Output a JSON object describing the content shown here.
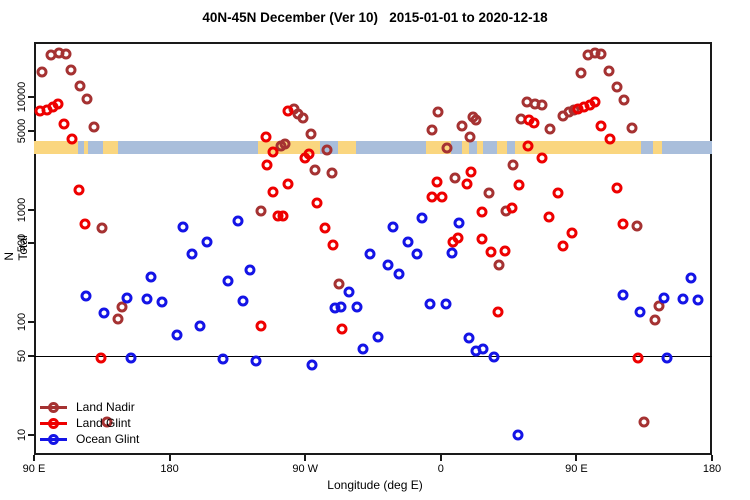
{
  "title": "40N-45N December (Ver 10)   2015-01-01 to 2020-12-18",
  "chart_data": {
    "type": "scatter",
    "xlabel": "Longitude (deg E)",
    "ylabel": "N Total",
    "y_scale": "log10",
    "x_domain": [
      90,
      540
    ],
    "y_domain": [
      6.6,
      30800
    ],
    "grid": false,
    "reference_line_y": 50,
    "x_ticks": [
      {
        "label": "90 E",
        "value": 90
      },
      {
        "label": "180",
        "value": 180
      },
      {
        "label": "90 W",
        "value": 270
      },
      {
        "label": "0",
        "value": 360
      },
      {
        "label": "90 E",
        "value": 450
      },
      {
        "label": "180",
        "value": 540
      }
    ],
    "y_ticks": [
      {
        "label": "10000",
        "value": 10000
      },
      {
        "label": "5000",
        "value": 5000
      },
      {
        "label": "1000",
        "value": 1000
      },
      {
        "label": "500",
        "value": 500
      },
      {
        "label": "100",
        "value": 100
      },
      {
        "label": "50",
        "value": 50
      },
      {
        "label": "10",
        "value": 10
      }
    ],
    "map_strip": {
      "comment": "coastline band across plot; values are N-Total range it spans",
      "value_range": [
        3120,
        4070
      ],
      "ocean_color": "#A9BEDB",
      "land_color": "#FAD67F",
      "land_segments_deg": [
        [
          90,
          119
        ],
        [
          123,
          126
        ],
        [
          136,
          146
        ],
        [
          239,
          280
        ],
        [
          292,
          304
        ],
        [
          350,
          367
        ],
        [
          374,
          379
        ],
        [
          384,
          388
        ],
        [
          397,
          404
        ],
        [
          409,
          493
        ],
        [
          501,
          507
        ]
      ]
    },
    "legend_position": "bottom-left",
    "series": [
      {
        "name": "Land Nadir",
        "color": "#A53232",
        "marker": "open-circle",
        "points": [
          [
            95.3,
            16700
          ],
          [
            101.3,
            23600
          ],
          [
            106.6,
            24600
          ],
          [
            111.2,
            24000
          ],
          [
            114.6,
            17400
          ],
          [
            120.5,
            12500
          ],
          [
            125.2,
            9600
          ],
          [
            129.8,
            5400
          ],
          [
            135.1,
            690
          ],
          [
            138.4,
            13
          ],
          [
            145.8,
            107
          ],
          [
            148.4,
            137
          ],
          [
            240.7,
            970
          ],
          [
            253.9,
            3700
          ],
          [
            256.6,
            3800
          ],
          [
            262.6,
            7800
          ],
          [
            265.2,
            7100
          ],
          [
            268.5,
            6500
          ],
          [
            273.8,
            4700
          ],
          [
            276.5,
            2250
          ],
          [
            284.5,
            3400
          ],
          [
            287.8,
            2100
          ],
          [
            292.4,
            220
          ],
          [
            354.1,
            5100
          ],
          [
            358.1,
            7400
          ],
          [
            364.1,
            3500
          ],
          [
            369.4,
            1900
          ],
          [
            374.1,
            5500
          ],
          [
            379.4,
            4400
          ],
          [
            381.4,
            6600
          ],
          [
            383.4,
            6300
          ],
          [
            392.0,
            1400
          ],
          [
            398.6,
            320
          ],
          [
            403.3,
            970
          ],
          [
            407.9,
            2500
          ],
          [
            413.2,
            6400
          ],
          [
            417.2,
            9000
          ],
          [
            422.5,
            8700
          ],
          [
            427.2,
            8500
          ],
          [
            432.5,
            5200
          ],
          [
            441.1,
            6800
          ],
          [
            445.1,
            7400
          ],
          [
            448.4,
            7700
          ],
          [
            453.1,
            16300
          ],
          [
            457.7,
            23600
          ],
          [
            462.4,
            24600
          ],
          [
            466.4,
            24000
          ],
          [
            471.7,
            17000
          ],
          [
            477.0,
            12300
          ],
          [
            481.6,
            9400
          ],
          [
            486.9,
            5300
          ],
          [
            490.2,
            720
          ],
          [
            494.9,
            13
          ],
          [
            502.2,
            105
          ],
          [
            504.8,
            140
          ]
        ]
      },
      {
        "name": "Land Glint",
        "color": "#EE0000",
        "marker": "open-circle",
        "points": [
          [
            94.0,
            7500
          ],
          [
            98.6,
            7700
          ],
          [
            102.6,
            8200
          ],
          [
            105.9,
            8700
          ],
          [
            109.9,
            5700
          ],
          [
            115.2,
            4200
          ],
          [
            119.9,
            1500
          ],
          [
            123.9,
            750
          ],
          [
            134.5,
            48
          ],
          [
            240.7,
            93
          ],
          [
            244.0,
            4400
          ],
          [
            244.6,
            2500
          ],
          [
            248.6,
            3250
          ],
          [
            248.6,
            1440
          ],
          [
            251.9,
            880
          ],
          [
            255.3,
            880
          ],
          [
            258.6,
            7500
          ],
          [
            258.6,
            1700
          ],
          [
            269.9,
            2900
          ],
          [
            272.5,
            3100
          ],
          [
            277.8,
            1150
          ],
          [
            283.1,
            690
          ],
          [
            288.4,
            480
          ],
          [
            294.4,
            87
          ],
          [
            354.1,
            1300
          ],
          [
            357.5,
            1760
          ],
          [
            360.8,
            1300
          ],
          [
            368.1,
            520
          ],
          [
            371.4,
            560
          ],
          [
            377.4,
            1700
          ],
          [
            380.0,
            2160
          ],
          [
            387.3,
            950
          ],
          [
            387.3,
            550
          ],
          [
            393.3,
            420
          ],
          [
            398.0,
            124
          ],
          [
            402.6,
            430
          ],
          [
            407.3,
            1030
          ],
          [
            411.9,
            1650
          ],
          [
            417.9,
            3700
          ],
          [
            418.5,
            6300
          ],
          [
            421.9,
            5900
          ],
          [
            427.2,
            2900
          ],
          [
            431.8,
            860
          ],
          [
            437.8,
            1400
          ],
          [
            441.1,
            470
          ],
          [
            447.1,
            620
          ],
          [
            451.1,
            7800
          ],
          [
            455.1,
            8200
          ],
          [
            459.1,
            8500
          ],
          [
            462.4,
            9000
          ],
          [
            466.4,
            5500
          ],
          [
            472.4,
            4200
          ],
          [
            477.0,
            1560
          ],
          [
            481.0,
            750
          ],
          [
            490.9,
            48
          ]
        ]
      },
      {
        "name": "Ocean Glint",
        "color": "#1414E6",
        "marker": "open-circle",
        "points": [
          [
            124.5,
            170
          ],
          [
            136.5,
            120
          ],
          [
            151.7,
            165
          ],
          [
            154.4,
            48
          ],
          [
            165.0,
            160
          ],
          [
            167.7,
            250
          ],
          [
            175.0,
            150
          ],
          [
            184.9,
            77
          ],
          [
            188.9,
            700
          ],
          [
            194.9,
            400
          ],
          [
            200.2,
            93
          ],
          [
            204.8,
            510
          ],
          [
            215.4,
            47
          ],
          [
            218.8,
            233
          ],
          [
            225.4,
            790
          ],
          [
            228.7,
            155
          ],
          [
            233.4,
            290
          ],
          [
            237.3,
            45
          ],
          [
            274.5,
            42
          ],
          [
            289.8,
            134
          ],
          [
            293.7,
            137
          ],
          [
            299.1,
            185
          ],
          [
            304.4,
            137
          ],
          [
            308.4,
            58
          ],
          [
            313.0,
            400
          ],
          [
            318.3,
            74
          ],
          [
            325.0,
            320
          ],
          [
            328.3,
            700
          ],
          [
            332.3,
            270
          ],
          [
            338.2,
            510
          ],
          [
            344.2,
            400
          ],
          [
            347.5,
            840
          ],
          [
            352.8,
            145
          ],
          [
            363.4,
            146
          ],
          [
            367.4,
            410
          ],
          [
            372.1,
            760
          ],
          [
            378.7,
            72
          ],
          [
            383.4,
            55
          ],
          [
            388.0,
            58
          ],
          [
            395.3,
            49
          ],
          [
            411.2,
            10
          ],
          [
            480.9,
            175
          ],
          [
            492.2,
            124
          ],
          [
            508.1,
            165
          ],
          [
            510.1,
            48
          ],
          [
            520.7,
            160
          ],
          [
            526.0,
            245
          ],
          [
            530.7,
            158
          ]
        ]
      }
    ]
  }
}
